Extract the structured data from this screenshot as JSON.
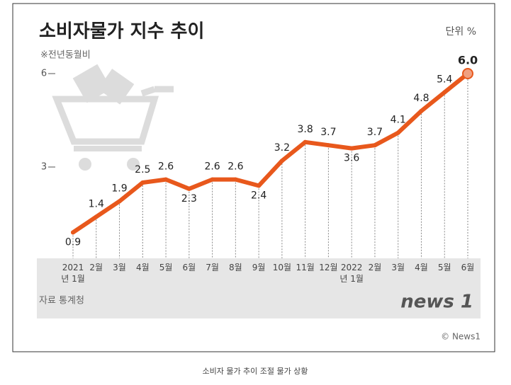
{
  "chart_data": {
    "type": "line",
    "title": "소비자물가 지수 추이",
    "unit_label": "단위 %",
    "subtitle": "※전년동월비",
    "source": "자료 통계청",
    "logo": "news 1",
    "credit": "© News1",
    "caption": "소비자 물가 추이 조절 물가 상황",
    "categories": [
      "2021년 1월",
      "2월",
      "3월",
      "4월",
      "5월",
      "6월",
      "7월",
      "8월",
      "9월",
      "10월",
      "11월",
      "12월",
      "2022년 1월",
      "2월",
      "3월",
      "4월",
      "5월",
      "6월"
    ],
    "values": [
      0.9,
      1.4,
      1.9,
      2.5,
      2.6,
      2.3,
      2.6,
      2.6,
      2.4,
      3.2,
      3.8,
      3.7,
      3.6,
      3.7,
      4.1,
      4.8,
      5.4,
      6
    ],
    "value_labels": [
      "0.9",
      "1.4",
      "1.9",
      "2.5",
      "2.6",
      "2.3",
      "2.6",
      "2.6",
      "2.4",
      "3.2",
      "3.8",
      "3.7",
      "3.6",
      "3.7",
      "4.1",
      "4.8",
      "5.4",
      "6.0"
    ],
    "color": "#e8581c",
    "ylim": [
      0,
      6
    ],
    "yticks": [
      3,
      6
    ]
  }
}
